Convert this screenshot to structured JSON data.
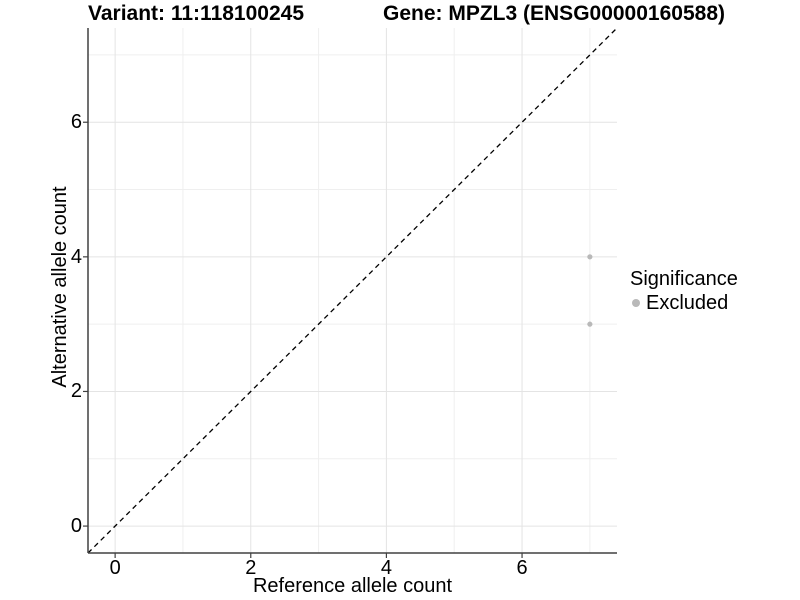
{
  "titles": {
    "variant": "Variant: 11:118100245",
    "gene": "Gene: MPZL3 (ENSG00000160588)"
  },
  "chart_data": {
    "type": "scatter",
    "title_left": "Variant: 11:118100245",
    "title_right": "Gene: MPZL3 (ENSG00000160588)",
    "xlabel": "Reference allele count",
    "ylabel": "Alternative allele count",
    "xlim": [
      -0.4,
      7.4
    ],
    "ylim": [
      -0.4,
      7.4
    ],
    "xticks": [
      0,
      2,
      4,
      6
    ],
    "yticks": [
      0,
      2,
      4,
      6
    ],
    "minor_gridlines_x": [
      1,
      3,
      5,
      7
    ],
    "minor_gridlines_y": [
      1,
      3,
      5,
      7
    ],
    "grid": true,
    "reference_line": {
      "type": "identity",
      "style": "dashed",
      "color": "#000000",
      "from": [
        -0.4,
        -0.4
      ],
      "to": [
        7.4,
        7.4
      ]
    },
    "series": [
      {
        "name": "Excluded",
        "color": "#b9b9b9",
        "points": [
          {
            "x": 7,
            "y": 4
          },
          {
            "x": 7,
            "y": 3
          }
        ]
      }
    ],
    "legend": {
      "title": "Significance",
      "position": "right",
      "entries": [
        {
          "label": "Excluded",
          "color": "#b9b9b9"
        }
      ]
    },
    "colors": {
      "grid_major": "#e4e4e4",
      "grid_minor": "#efefef",
      "axis_line": "#404040",
      "tick_mark": "#404040",
      "point": "#b9b9b9",
      "background": "#ffffff"
    }
  }
}
